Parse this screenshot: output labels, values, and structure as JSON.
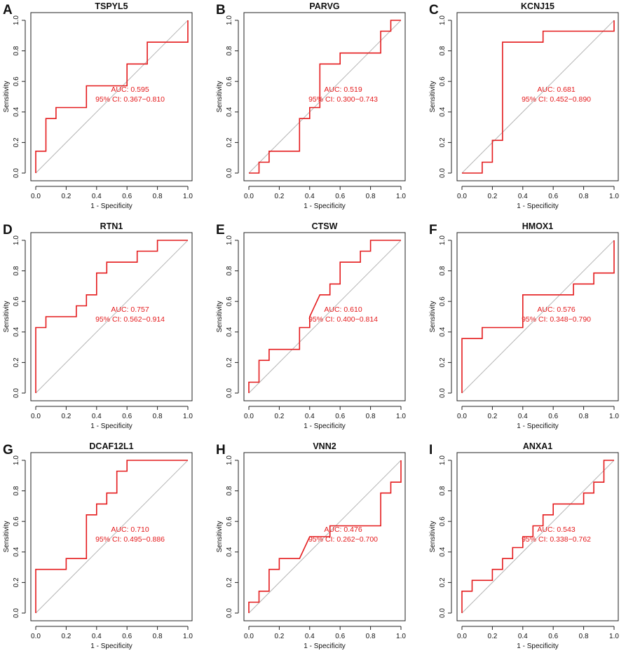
{
  "chart_data": [
    {
      "type": "line",
      "letter": "A",
      "title": "TSPYL5",
      "xlabel": "1 - Specificity",
      "ylabel": "Sensitivity",
      "xlim": [
        0,
        1
      ],
      "ylim": [
        0,
        1
      ],
      "xticks": [
        "0.0",
        "0.2",
        "0.4",
        "0.6",
        "0.8",
        "1.0"
      ],
      "yticks": [
        "0.0",
        "0.2",
        "0.4",
        "0.6",
        "0.8",
        "1.0"
      ],
      "auc_label": "AUC: 0.595",
      "ci_label": "95% CI: 0.367−0.810",
      "roc": [
        [
          0,
          0
        ],
        [
          0,
          0.143
        ],
        [
          0.067,
          0.143
        ],
        [
          0.067,
          0.357
        ],
        [
          0.133,
          0.357
        ],
        [
          0.133,
          0.429
        ],
        [
          0.333,
          0.429
        ],
        [
          0.333,
          0.571
        ],
        [
          0.6,
          0.571
        ],
        [
          0.6,
          0.714
        ],
        [
          0.733,
          0.714
        ],
        [
          0.733,
          0.857
        ],
        [
          1,
          0.857
        ],
        [
          1,
          1
        ]
      ],
      "line_color": "#e41a1c",
      "diag_color": "#b5b5b5"
    },
    {
      "type": "line",
      "letter": "B",
      "title": "PARVG",
      "xlabel": "1 - Specificity",
      "ylabel": "Sensitivity",
      "xlim": [
        0,
        1
      ],
      "ylim": [
        0,
        1
      ],
      "xticks": [
        "0.0",
        "0.2",
        "0.4",
        "0.6",
        "0.8",
        "1.0"
      ],
      "yticks": [
        "0.0",
        "0.2",
        "0.4",
        "0.6",
        "0.8",
        "1.0"
      ],
      "auc_label": "AUC: 0.519",
      "ci_label": "95% CI: 0.300−0.743",
      "roc": [
        [
          0,
          0
        ],
        [
          0.067,
          0
        ],
        [
          0.067,
          0.071
        ],
        [
          0.133,
          0.071
        ],
        [
          0.133,
          0.143
        ],
        [
          0.333,
          0.143
        ],
        [
          0.333,
          0.357
        ],
        [
          0.4,
          0.357
        ],
        [
          0.4,
          0.429
        ],
        [
          0.467,
          0.429
        ],
        [
          0.467,
          0.714
        ],
        [
          0.6,
          0.714
        ],
        [
          0.6,
          0.786
        ],
        [
          0.867,
          0.786
        ],
        [
          0.867,
          0.929
        ],
        [
          0.933,
          0.929
        ],
        [
          0.933,
          1
        ],
        [
          1,
          1
        ]
      ],
      "line_color": "#e41a1c",
      "diag_color": "#b5b5b5"
    },
    {
      "type": "line",
      "letter": "C",
      "title": "KCNJ15",
      "xlabel": "1 - Specificity",
      "ylabel": "Sensitivity",
      "xlim": [
        0,
        1
      ],
      "ylim": [
        0,
        1
      ],
      "xticks": [
        "0.0",
        "0.2",
        "0.4",
        "0.6",
        "0.8",
        "1.0"
      ],
      "yticks": [
        "0.0",
        "0.2",
        "0.4",
        "0.6",
        "0.8",
        "1.0"
      ],
      "auc_label": "AUC: 0.681",
      "ci_label": "95% CI: 0.452−0.890",
      "roc": [
        [
          0,
          0
        ],
        [
          0.133,
          0
        ],
        [
          0.133,
          0.071
        ],
        [
          0.2,
          0.071
        ],
        [
          0.2,
          0.214
        ],
        [
          0.267,
          0.214
        ],
        [
          0.267,
          0.857
        ],
        [
          0.533,
          0.857
        ],
        [
          0.533,
          0.929
        ],
        [
          1,
          0.929
        ],
        [
          1,
          1
        ]
      ],
      "line_color": "#e41a1c",
      "diag_color": "#b5b5b5"
    },
    {
      "type": "line",
      "letter": "D",
      "title": "RTN1",
      "xlabel": "1 - Specificity",
      "ylabel": "Sensitivity",
      "xlim": [
        0,
        1
      ],
      "ylim": [
        0,
        1
      ],
      "xticks": [
        "0.0",
        "0.2",
        "0.4",
        "0.6",
        "0.8",
        "1.0"
      ],
      "yticks": [
        "0.0",
        "0.2",
        "0.4",
        "0.6",
        "0.8",
        "1.0"
      ],
      "auc_label": "AUC: 0.757",
      "ci_label": "95% CI: 0.562−0.914",
      "roc": [
        [
          0,
          0
        ],
        [
          0,
          0.429
        ],
        [
          0.067,
          0.429
        ],
        [
          0.067,
          0.5
        ],
        [
          0.267,
          0.5
        ],
        [
          0.267,
          0.571
        ],
        [
          0.333,
          0.571
        ],
        [
          0.333,
          0.643
        ],
        [
          0.4,
          0.643
        ],
        [
          0.4,
          0.786
        ],
        [
          0.467,
          0.786
        ],
        [
          0.467,
          0.857
        ],
        [
          0.667,
          0.857
        ],
        [
          0.667,
          0.929
        ],
        [
          0.8,
          0.929
        ],
        [
          0.8,
          1
        ],
        [
          1,
          1
        ]
      ],
      "line_color": "#e41a1c",
      "diag_color": "#b5b5b5"
    },
    {
      "type": "line",
      "letter": "E",
      "title": "CTSW",
      "xlabel": "1 - Specificity",
      "ylabel": "Sensitivity",
      "xlim": [
        0,
        1
      ],
      "ylim": [
        0,
        1
      ],
      "xticks": [
        "0.0",
        "0.2",
        "0.4",
        "0.6",
        "0.8",
        "1.0"
      ],
      "yticks": [
        "0.0",
        "0.2",
        "0.4",
        "0.6",
        "0.8",
        "1.0"
      ],
      "auc_label": "AUC: 0.610",
      "ci_label": "95% CI: 0.400−0.814",
      "roc": [
        [
          0,
          0
        ],
        [
          0,
          0.071
        ],
        [
          0.067,
          0.071
        ],
        [
          0.067,
          0.214
        ],
        [
          0.133,
          0.214
        ],
        [
          0.133,
          0.286
        ],
        [
          0.333,
          0.286
        ],
        [
          0.333,
          0.429
        ],
        [
          0.4,
          0.429
        ],
        [
          0.4,
          0.5
        ],
        [
          0.467,
          0.643
        ],
        [
          0.533,
          0.643
        ],
        [
          0.533,
          0.714
        ],
        [
          0.6,
          0.714
        ],
        [
          0.6,
          0.857
        ],
        [
          0.733,
          0.857
        ],
        [
          0.733,
          0.929
        ],
        [
          0.8,
          0.929
        ],
        [
          0.8,
          1
        ],
        [
          1,
          1
        ]
      ],
      "line_color": "#e41a1c",
      "diag_color": "#b5b5b5"
    },
    {
      "type": "line",
      "letter": "F",
      "title": "HMOX1",
      "xlabel": "1 - Specificity",
      "ylabel": "Sensitivity",
      "xlim": [
        0,
        1
      ],
      "ylim": [
        0,
        1
      ],
      "xticks": [
        "0.0",
        "0.2",
        "0.4",
        "0.6",
        "0.8",
        "1.0"
      ],
      "yticks": [
        "0.0",
        "0.2",
        "0.4",
        "0.6",
        "0.8",
        "1.0"
      ],
      "auc_label": "AUC: 0.576",
      "ci_label": "95% CI: 0.348−0.790",
      "roc": [
        [
          0,
          0
        ],
        [
          0,
          0.357
        ],
        [
          0.133,
          0.357
        ],
        [
          0.133,
          0.429
        ],
        [
          0.4,
          0.429
        ],
        [
          0.4,
          0.643
        ],
        [
          0.733,
          0.643
        ],
        [
          0.733,
          0.714
        ],
        [
          0.867,
          0.714
        ],
        [
          0.867,
          0.786
        ],
        [
          1,
          0.786
        ],
        [
          1,
          1
        ]
      ],
      "line_color": "#e41a1c",
      "diag_color": "#b5b5b5"
    },
    {
      "type": "line",
      "letter": "G",
      "title": "DCAF12L1",
      "xlabel": "1 - Specificity",
      "ylabel": "Sensitivity",
      "xlim": [
        0,
        1
      ],
      "ylim": [
        0,
        1
      ],
      "xticks": [
        "0.0",
        "0.2",
        "0.4",
        "0.6",
        "0.8",
        "1.0"
      ],
      "yticks": [
        "0.0",
        "0.2",
        "0.4",
        "0.6",
        "0.8",
        "1.0"
      ],
      "auc_label": "AUC: 0.710",
      "ci_label": "95% CI: 0.495−0.886",
      "roc": [
        [
          0,
          0
        ],
        [
          0,
          0.286
        ],
        [
          0.2,
          0.286
        ],
        [
          0.2,
          0.357
        ],
        [
          0.333,
          0.357
        ],
        [
          0.333,
          0.643
        ],
        [
          0.4,
          0.643
        ],
        [
          0.4,
          0.714
        ],
        [
          0.467,
          0.714
        ],
        [
          0.467,
          0.786
        ],
        [
          0.533,
          0.786
        ],
        [
          0.533,
          0.929
        ],
        [
          0.6,
          0.929
        ],
        [
          0.6,
          1
        ],
        [
          1,
          1
        ]
      ],
      "line_color": "#e41a1c",
      "diag_color": "#b5b5b5"
    },
    {
      "type": "line",
      "letter": "H",
      "title": "VNN2",
      "xlabel": "1 - Specificity",
      "ylabel": "Sensitivity",
      "xlim": [
        0,
        1
      ],
      "ylim": [
        0,
        1
      ],
      "xticks": [
        "0.0",
        "0.2",
        "0.4",
        "0.6",
        "0.8",
        "1.0"
      ],
      "yticks": [
        "0.0",
        "0.2",
        "0.4",
        "0.6",
        "0.8",
        "1.0"
      ],
      "auc_label": "AUC: 0.476",
      "ci_label": "95% CI: 0.262−0.700",
      "roc": [
        [
          0,
          0
        ],
        [
          0,
          0.071
        ],
        [
          0.067,
          0.071
        ],
        [
          0.067,
          0.143
        ],
        [
          0.133,
          0.143
        ],
        [
          0.133,
          0.286
        ],
        [
          0.2,
          0.286
        ],
        [
          0.2,
          0.357
        ],
        [
          0.333,
          0.357
        ],
        [
          0.4,
          0.5
        ],
        [
          0.533,
          0.5
        ],
        [
          0.533,
          0.571
        ],
        [
          0.867,
          0.571
        ],
        [
          0.867,
          0.786
        ],
        [
          0.933,
          0.786
        ],
        [
          0.933,
          0.857
        ],
        [
          1,
          0.857
        ],
        [
          1,
          1
        ]
      ],
      "line_color": "#e41a1c",
      "diag_color": "#b5b5b5"
    },
    {
      "type": "line",
      "letter": "I",
      "title": "ANXA1",
      "xlabel": "1 - Specificity",
      "ylabel": "Sensitivity",
      "xlim": [
        0,
        1
      ],
      "ylim": [
        0,
        1
      ],
      "xticks": [
        "0.0",
        "0.2",
        "0.4",
        "0.6",
        "0.8",
        "1.0"
      ],
      "yticks": [
        "0.0",
        "0.2",
        "0.4",
        "0.6",
        "0.8",
        "1.0"
      ],
      "auc_label": "AUC: 0.543",
      "ci_label": "95% CI: 0.338−0.762",
      "roc": [
        [
          0,
          0
        ],
        [
          0,
          0.143
        ],
        [
          0.067,
          0.143
        ],
        [
          0.067,
          0.214
        ],
        [
          0.2,
          0.214
        ],
        [
          0.2,
          0.286
        ],
        [
          0.267,
          0.286
        ],
        [
          0.267,
          0.357
        ],
        [
          0.333,
          0.357
        ],
        [
          0.333,
          0.429
        ],
        [
          0.4,
          0.429
        ],
        [
          0.4,
          0.5
        ],
        [
          0.467,
          0.5
        ],
        [
          0.467,
          0.571
        ],
        [
          0.533,
          0.571
        ],
        [
          0.533,
          0.643
        ],
        [
          0.6,
          0.643
        ],
        [
          0.6,
          0.714
        ],
        [
          0.8,
          0.714
        ],
        [
          0.8,
          0.786
        ],
        [
          0.867,
          0.786
        ],
        [
          0.867,
          0.857
        ],
        [
          0.933,
          0.857
        ],
        [
          0.933,
          1
        ],
        [
          1,
          1
        ]
      ],
      "line_color": "#e41a1c",
      "diag_color": "#b5b5b5"
    }
  ]
}
